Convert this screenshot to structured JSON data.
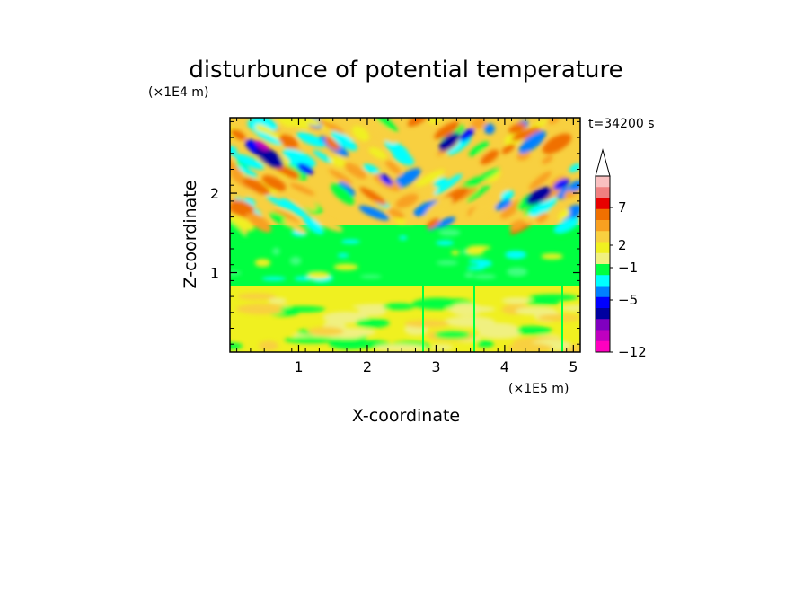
{
  "chart_data": {
    "type": "heatmap",
    "title": "disturbunce of potential temperature",
    "xlabel": "X-coordinate",
    "ylabel": "Z-coordinate",
    "x_unit": "(×1E5 m)",
    "y_unit": "(×1E4 m)",
    "annotation": "t=34200 s",
    "xlim": [
      0,
      5.1
    ],
    "ylim": [
      0,
      2.95
    ],
    "x_ticks": [
      "1",
      "2",
      "3",
      "4",
      "5"
    ],
    "x_tick_values": [
      1,
      2,
      3,
      4,
      5
    ],
    "y_ticks": [
      "1",
      "2"
    ],
    "y_tick_values": [
      1,
      2
    ],
    "colorbar": {
      "labels": [
        "7",
        "2",
        "−1",
        "−5",
        "−12"
      ],
      "levels": [
        7,
        2,
        -1,
        -5,
        -12
      ],
      "colors_top_to_bottom": [
        "#f9c0c0",
        "#f08080",
        "#e80000",
        "#f07000",
        "#f8a020",
        "#f8d040",
        "#f0f020",
        "#f0f080",
        "#00ff40",
        "#00ffff",
        "#0080ff",
        "#0000ff",
        "#0000a0",
        "#8000c0",
        "#c000c0",
        "#ff00c0"
      ],
      "extend_top": true
    },
    "grid": false,
    "legend": "colorbar right"
  }
}
